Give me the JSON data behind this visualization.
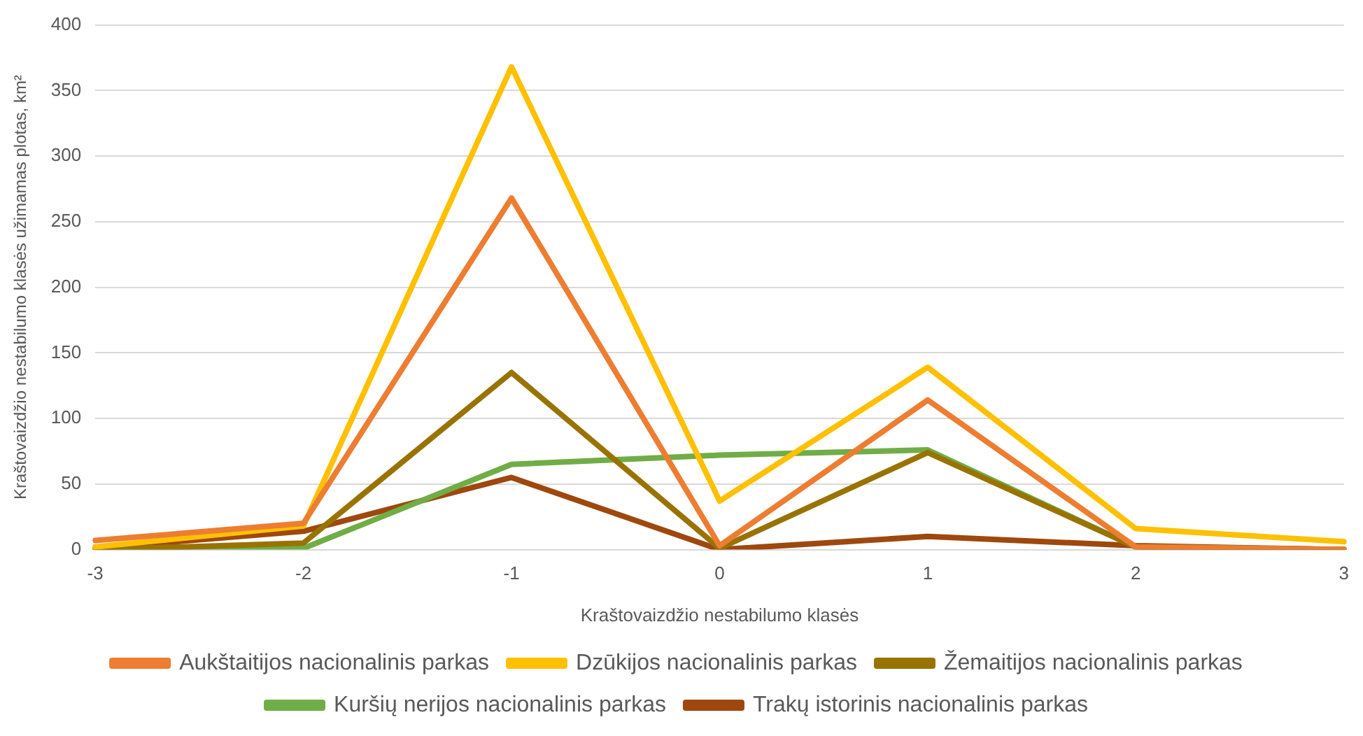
{
  "chart_data": {
    "type": "line",
    "xlabel": "Kraštovaizdžio nestabilumo klasės",
    "ylabel": "Kraštovaizdžio nestabilumo klasės užimamas plotas, km²",
    "categories": [
      "-3",
      "-2",
      "-1",
      "0",
      "1",
      "2",
      "3"
    ],
    "series": [
      {
        "name": "Aukštaitijos nacionalinis parkas",
        "color": "#ed7d31",
        "values": [
          7,
          20,
          268,
          3,
          114,
          2,
          0
        ]
      },
      {
        "name": "Dzūkijos nacionalinis parkas",
        "color": "#ffc000",
        "values": [
          2,
          18,
          368,
          37,
          139,
          16,
          6
        ]
      },
      {
        "name": "Žemaitijos nacionalinis parkas",
        "color": "#997300",
        "values": [
          0,
          5,
          135,
          1,
          74,
          2,
          0
        ]
      },
      {
        "name": "Kuršių nerijos nacionalinis parkas",
        "color": "#70ad47",
        "values": [
          0,
          1,
          65,
          72,
          76,
          2,
          0
        ]
      },
      {
        "name": "Trakų istorinis nacionalinis parkas",
        "color": "#9e480e",
        "values": [
          1,
          14,
          55,
          0,
          10,
          3,
          0
        ]
      }
    ],
    "ylim": [
      0,
      400
    ],
    "yticks": [
      0,
      50,
      100,
      150,
      200,
      250,
      300,
      350,
      400
    ],
    "grid": "y",
    "legend": "bottom",
    "marker": "none",
    "line_style": "solid"
  }
}
